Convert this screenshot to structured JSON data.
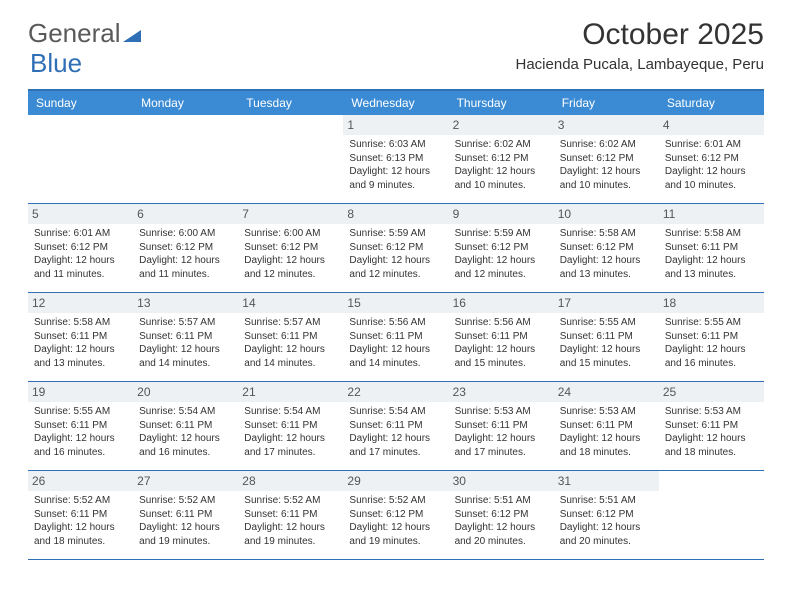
{
  "logo": {
    "text1": "General",
    "text2": "Blue"
  },
  "title": "October 2025",
  "location": "Hacienda Pucala, Lambayeque, Peru",
  "colors": {
    "header_bg": "#3b8bd4",
    "header_text": "#ffffff",
    "border": "#2f6fb5",
    "daynum_bg": "#eef1f4",
    "body_text": "#333333",
    "logo_gray": "#5a5a5a",
    "logo_blue": "#2f6fb5"
  },
  "typography": {
    "title_fontsize": 30,
    "location_fontsize": 15,
    "dayhead_fontsize": 12,
    "daynum_fontsize": 12,
    "cell_fontsize": 10,
    "logo_fontsize": 26
  },
  "day_names": [
    "Sunday",
    "Monday",
    "Tuesday",
    "Wednesday",
    "Thursday",
    "Friday",
    "Saturday"
  ],
  "weeks": [
    [
      {
        "empty": true
      },
      {
        "empty": true
      },
      {
        "empty": true
      },
      {
        "day": "1",
        "sunrise": "Sunrise: 6:03 AM",
        "sunset": "Sunset: 6:13 PM",
        "dl1": "Daylight: 12 hours",
        "dl2": "and 9 minutes."
      },
      {
        "day": "2",
        "sunrise": "Sunrise: 6:02 AM",
        "sunset": "Sunset: 6:12 PM",
        "dl1": "Daylight: 12 hours",
        "dl2": "and 10 minutes."
      },
      {
        "day": "3",
        "sunrise": "Sunrise: 6:02 AM",
        "sunset": "Sunset: 6:12 PM",
        "dl1": "Daylight: 12 hours",
        "dl2": "and 10 minutes."
      },
      {
        "day": "4",
        "sunrise": "Sunrise: 6:01 AM",
        "sunset": "Sunset: 6:12 PM",
        "dl1": "Daylight: 12 hours",
        "dl2": "and 10 minutes."
      }
    ],
    [
      {
        "day": "5",
        "sunrise": "Sunrise: 6:01 AM",
        "sunset": "Sunset: 6:12 PM",
        "dl1": "Daylight: 12 hours",
        "dl2": "and 11 minutes."
      },
      {
        "day": "6",
        "sunrise": "Sunrise: 6:00 AM",
        "sunset": "Sunset: 6:12 PM",
        "dl1": "Daylight: 12 hours",
        "dl2": "and 11 minutes."
      },
      {
        "day": "7",
        "sunrise": "Sunrise: 6:00 AM",
        "sunset": "Sunset: 6:12 PM",
        "dl1": "Daylight: 12 hours",
        "dl2": "and 12 minutes."
      },
      {
        "day": "8",
        "sunrise": "Sunrise: 5:59 AM",
        "sunset": "Sunset: 6:12 PM",
        "dl1": "Daylight: 12 hours",
        "dl2": "and 12 minutes."
      },
      {
        "day": "9",
        "sunrise": "Sunrise: 5:59 AM",
        "sunset": "Sunset: 6:12 PM",
        "dl1": "Daylight: 12 hours",
        "dl2": "and 12 minutes."
      },
      {
        "day": "10",
        "sunrise": "Sunrise: 5:58 AM",
        "sunset": "Sunset: 6:12 PM",
        "dl1": "Daylight: 12 hours",
        "dl2": "and 13 minutes."
      },
      {
        "day": "11",
        "sunrise": "Sunrise: 5:58 AM",
        "sunset": "Sunset: 6:11 PM",
        "dl1": "Daylight: 12 hours",
        "dl2": "and 13 minutes."
      }
    ],
    [
      {
        "day": "12",
        "sunrise": "Sunrise: 5:58 AM",
        "sunset": "Sunset: 6:11 PM",
        "dl1": "Daylight: 12 hours",
        "dl2": "and 13 minutes."
      },
      {
        "day": "13",
        "sunrise": "Sunrise: 5:57 AM",
        "sunset": "Sunset: 6:11 PM",
        "dl1": "Daylight: 12 hours",
        "dl2": "and 14 minutes."
      },
      {
        "day": "14",
        "sunrise": "Sunrise: 5:57 AM",
        "sunset": "Sunset: 6:11 PM",
        "dl1": "Daylight: 12 hours",
        "dl2": "and 14 minutes."
      },
      {
        "day": "15",
        "sunrise": "Sunrise: 5:56 AM",
        "sunset": "Sunset: 6:11 PM",
        "dl1": "Daylight: 12 hours",
        "dl2": "and 14 minutes."
      },
      {
        "day": "16",
        "sunrise": "Sunrise: 5:56 AM",
        "sunset": "Sunset: 6:11 PM",
        "dl1": "Daylight: 12 hours",
        "dl2": "and 15 minutes."
      },
      {
        "day": "17",
        "sunrise": "Sunrise: 5:55 AM",
        "sunset": "Sunset: 6:11 PM",
        "dl1": "Daylight: 12 hours",
        "dl2": "and 15 minutes."
      },
      {
        "day": "18",
        "sunrise": "Sunrise: 5:55 AM",
        "sunset": "Sunset: 6:11 PM",
        "dl1": "Daylight: 12 hours",
        "dl2": "and 16 minutes."
      }
    ],
    [
      {
        "day": "19",
        "sunrise": "Sunrise: 5:55 AM",
        "sunset": "Sunset: 6:11 PM",
        "dl1": "Daylight: 12 hours",
        "dl2": "and 16 minutes."
      },
      {
        "day": "20",
        "sunrise": "Sunrise: 5:54 AM",
        "sunset": "Sunset: 6:11 PM",
        "dl1": "Daylight: 12 hours",
        "dl2": "and 16 minutes."
      },
      {
        "day": "21",
        "sunrise": "Sunrise: 5:54 AM",
        "sunset": "Sunset: 6:11 PM",
        "dl1": "Daylight: 12 hours",
        "dl2": "and 17 minutes."
      },
      {
        "day": "22",
        "sunrise": "Sunrise: 5:54 AM",
        "sunset": "Sunset: 6:11 PM",
        "dl1": "Daylight: 12 hours",
        "dl2": "and 17 minutes."
      },
      {
        "day": "23",
        "sunrise": "Sunrise: 5:53 AM",
        "sunset": "Sunset: 6:11 PM",
        "dl1": "Daylight: 12 hours",
        "dl2": "and 17 minutes."
      },
      {
        "day": "24",
        "sunrise": "Sunrise: 5:53 AM",
        "sunset": "Sunset: 6:11 PM",
        "dl1": "Daylight: 12 hours",
        "dl2": "and 18 minutes."
      },
      {
        "day": "25",
        "sunrise": "Sunrise: 5:53 AM",
        "sunset": "Sunset: 6:11 PM",
        "dl1": "Daylight: 12 hours",
        "dl2": "and 18 minutes."
      }
    ],
    [
      {
        "day": "26",
        "sunrise": "Sunrise: 5:52 AM",
        "sunset": "Sunset: 6:11 PM",
        "dl1": "Daylight: 12 hours",
        "dl2": "and 18 minutes."
      },
      {
        "day": "27",
        "sunrise": "Sunrise: 5:52 AM",
        "sunset": "Sunset: 6:11 PM",
        "dl1": "Daylight: 12 hours",
        "dl2": "and 19 minutes."
      },
      {
        "day": "28",
        "sunrise": "Sunrise: 5:52 AM",
        "sunset": "Sunset: 6:11 PM",
        "dl1": "Daylight: 12 hours",
        "dl2": "and 19 minutes."
      },
      {
        "day": "29",
        "sunrise": "Sunrise: 5:52 AM",
        "sunset": "Sunset: 6:12 PM",
        "dl1": "Daylight: 12 hours",
        "dl2": "and 19 minutes."
      },
      {
        "day": "30",
        "sunrise": "Sunrise: 5:51 AM",
        "sunset": "Sunset: 6:12 PM",
        "dl1": "Daylight: 12 hours",
        "dl2": "and 20 minutes."
      },
      {
        "day": "31",
        "sunrise": "Sunrise: 5:51 AM",
        "sunset": "Sunset: 6:12 PM",
        "dl1": "Daylight: 12 hours",
        "dl2": "and 20 minutes."
      },
      {
        "empty": true
      }
    ]
  ]
}
